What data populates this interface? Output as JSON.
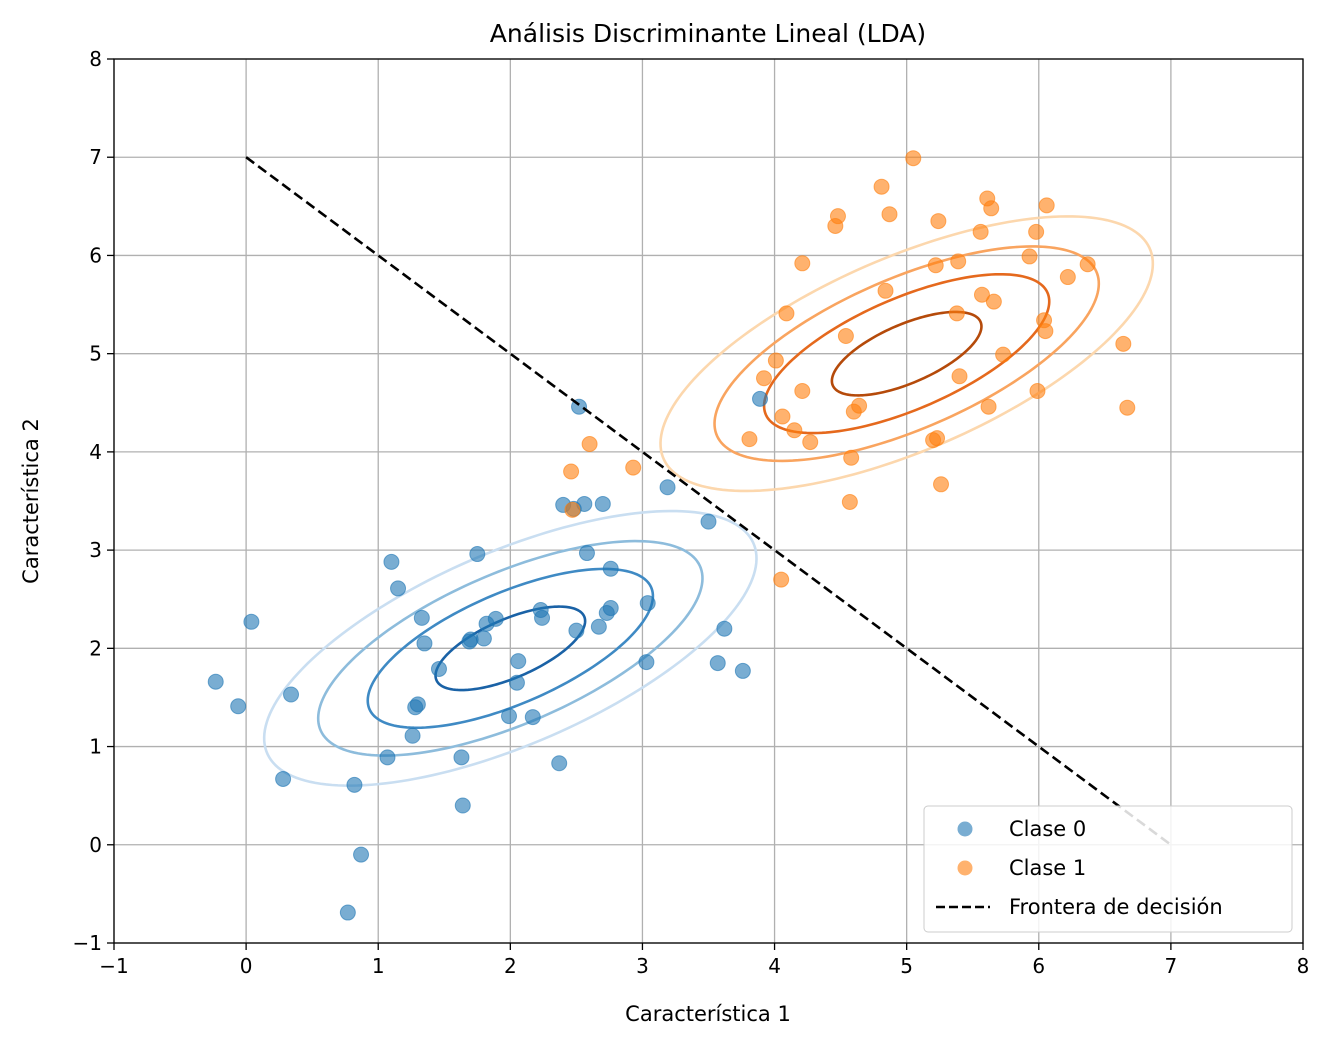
{
  "chart_data": {
    "type": "scatter",
    "title": "Análisis Discriminante Lineal (LDA)",
    "xlabel": "Característica 1",
    "ylabel": "Característica 2",
    "xlim": [
      -1,
      8
    ],
    "ylim": [
      -1,
      8
    ],
    "xticks": [
      -1,
      0,
      1,
      2,
      3,
      4,
      5,
      6,
      7,
      8
    ],
    "yticks": [
      -1,
      0,
      1,
      2,
      3,
      4,
      5,
      6,
      7,
      8
    ],
    "xtick_labels": [
      "−1",
      "0",
      "1",
      "2",
      "3",
      "4",
      "5",
      "6",
      "7",
      "8"
    ],
    "ytick_labels": [
      "−1",
      "0",
      "1",
      "2",
      "3",
      "4",
      "5",
      "6",
      "7",
      "8"
    ],
    "grid": true,
    "legend_position": "lower-right",
    "series": [
      {
        "name": "Clase 0",
        "color": "#1f77b4",
        "points": [
          [
            -0.23,
            1.66
          ],
          [
            -0.06,
            1.41
          ],
          [
            0.04,
            2.27
          ],
          [
            0.28,
            0.67
          ],
          [
            0.34,
            1.53
          ],
          [
            0.77,
            -0.69
          ],
          [
            0.82,
            0.61
          ],
          [
            0.87,
            -0.1
          ],
          [
            1.07,
            0.89
          ],
          [
            1.1,
            2.88
          ],
          [
            1.15,
            2.61
          ],
          [
            1.26,
            1.11
          ],
          [
            1.28,
            1.4
          ],
          [
            1.3,
            1.43
          ],
          [
            1.33,
            2.31
          ],
          [
            1.35,
            2.05
          ],
          [
            1.46,
            1.79
          ],
          [
            1.63,
            0.89
          ],
          [
            1.64,
            0.4
          ],
          [
            1.69,
            2.07
          ],
          [
            1.7,
            2.09
          ],
          [
            1.75,
            2.96
          ],
          [
            1.8,
            2.1
          ],
          [
            1.82,
            2.25
          ],
          [
            1.89,
            2.3
          ],
          [
            1.99,
            1.31
          ],
          [
            2.05,
            1.65
          ],
          [
            2.06,
            1.87
          ],
          [
            2.17,
            1.3
          ],
          [
            2.23,
            2.39
          ],
          [
            2.24,
            2.31
          ],
          [
            2.37,
            0.83
          ],
          [
            2.4,
            3.46
          ],
          [
            2.48,
            3.42
          ],
          [
            2.5,
            2.18
          ],
          [
            2.52,
            4.46
          ],
          [
            2.56,
            3.47
          ],
          [
            2.58,
            2.97
          ],
          [
            2.67,
            2.22
          ],
          [
            2.7,
            3.47
          ],
          [
            2.73,
            2.36
          ],
          [
            2.76,
            2.41
          ],
          [
            2.76,
            2.81
          ],
          [
            3.03,
            1.86
          ],
          [
            3.04,
            2.46
          ],
          [
            3.19,
            3.64
          ],
          [
            3.5,
            3.29
          ],
          [
            3.57,
            1.85
          ],
          [
            3.62,
            2.2
          ],
          [
            3.76,
            1.77
          ],
          [
            3.89,
            4.54
          ]
        ]
      },
      {
        "name": "Clase 1",
        "color": "#ff7f0e",
        "points": [
          [
            2.46,
            3.8
          ],
          [
            2.47,
            3.41
          ],
          [
            2.6,
            4.08
          ],
          [
            2.93,
            3.84
          ],
          [
            3.81,
            4.13
          ],
          [
            3.92,
            4.75
          ],
          [
            4.01,
            4.93
          ],
          [
            4.05,
            2.7
          ],
          [
            4.06,
            4.36
          ],
          [
            4.09,
            5.41
          ],
          [
            4.15,
            4.22
          ],
          [
            4.21,
            5.92
          ],
          [
            4.21,
            4.62
          ],
          [
            4.27,
            4.1
          ],
          [
            4.46,
            6.3
          ],
          [
            4.48,
            6.4
          ],
          [
            4.54,
            5.18
          ],
          [
            4.57,
            3.49
          ],
          [
            4.58,
            3.94
          ],
          [
            4.6,
            4.41
          ],
          [
            4.64,
            4.47
          ],
          [
            4.81,
            6.7
          ],
          [
            4.84,
            5.64
          ],
          [
            4.87,
            6.42
          ],
          [
            5.05,
            6.99
          ],
          [
            5.2,
            4.12
          ],
          [
            5.22,
            5.9
          ],
          [
            5.23,
            4.14
          ],
          [
            5.24,
            6.35
          ],
          [
            5.26,
            3.67
          ],
          [
            5.38,
            5.41
          ],
          [
            5.39,
            5.94
          ],
          [
            5.4,
            4.77
          ],
          [
            5.56,
            6.24
          ],
          [
            5.57,
            5.6
          ],
          [
            5.61,
            6.58
          ],
          [
            5.62,
            4.46
          ],
          [
            5.64,
            6.48
          ],
          [
            5.66,
            5.53
          ],
          [
            5.73,
            4.99
          ],
          [
            5.93,
            5.99
          ],
          [
            5.98,
            6.24
          ],
          [
            5.99,
            4.62
          ],
          [
            6.04,
            5.34
          ],
          [
            6.05,
            5.23
          ],
          [
            6.06,
            6.51
          ],
          [
            6.22,
            5.78
          ],
          [
            6.37,
            5.91
          ],
          [
            6.64,
            5.1
          ],
          [
            6.67,
            4.45
          ]
        ]
      },
      {
        "name": "Frontera de decisión",
        "color": "#000000",
        "line": [
          [
            0,
            7
          ],
          [
            7,
            0
          ]
        ]
      }
    ],
    "contours": [
      {
        "class": "Clase 0",
        "center": [
          2.0,
          2.0
        ],
        "angle_deg": 33,
        "ellipses": [
          {
            "a": 0.65,
            "b": 0.28,
            "color": "#1a62a6"
          },
          {
            "a": 1.24,
            "b": 0.53,
            "color": "#3f8ac4"
          },
          {
            "a": 1.67,
            "b": 0.72,
            "color": "#8dbcdc"
          },
          {
            "a": 2.14,
            "b": 0.92,
            "color": "#c9def1"
          }
        ]
      },
      {
        "class": "Clase 1",
        "center": [
          5.0,
          5.0
        ],
        "angle_deg": 33,
        "ellipses": [
          {
            "a": 0.65,
            "b": 0.28,
            "color": "#b54a0a"
          },
          {
            "a": 1.24,
            "b": 0.53,
            "color": "#e5691d"
          },
          {
            "a": 1.67,
            "b": 0.72,
            "color": "#f9a45f"
          },
          {
            "a": 2.14,
            "b": 0.92,
            "color": "#fcd7ad"
          }
        ]
      }
    ]
  }
}
